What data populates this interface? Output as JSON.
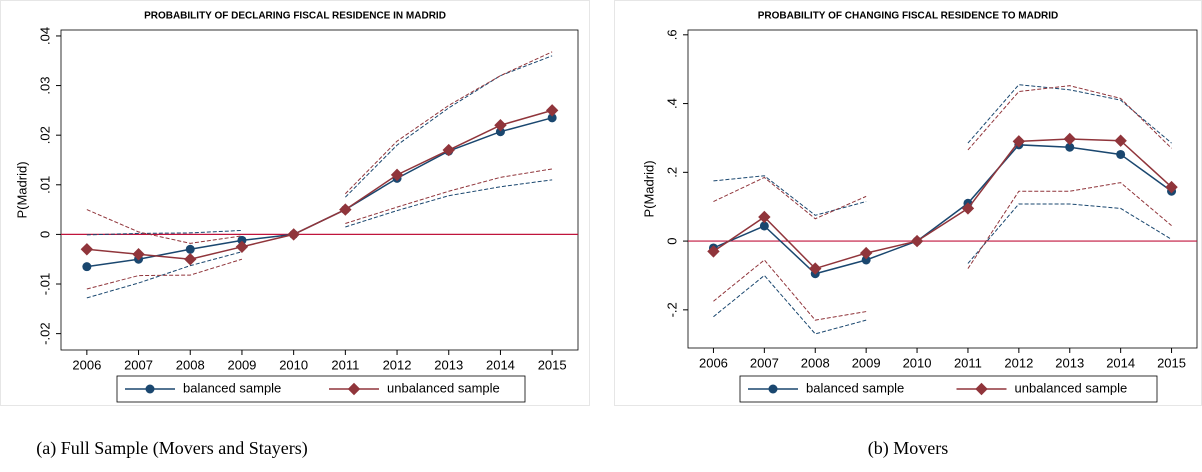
{
  "chart_data": [
    {
      "type": "line",
      "title": "PROBABILITY OF DECLARING FISCAL RESIDENCE IN MADRID",
      "y_label": "P(Madrid)",
      "caption": "(a) Full Sample (Movers and Stayers)",
      "categories": [
        "2006",
        "2007",
        "2008",
        "2009",
        "2010",
        "2011",
        "2012",
        "2013",
        "2014",
        "2015"
      ],
      "ylim": [
        -0.0233,
        0.0412
      ],
      "yticks": [
        {
          "value": -0.02,
          "label": "-.02"
        },
        {
          "value": -0.01,
          "label": "-.01"
        },
        0,
        {
          "value": 0.01,
          "label": ".01"
        },
        {
          "value": 0.02,
          "label": ".02"
        },
        {
          "value": 0.03,
          "label": ".03"
        },
        {
          "value": 0.04,
          "label": ".04"
        }
      ],
      "reference_line": 0,
      "reference_color": "#c0143c",
      "series": [
        {
          "name": "balanced sample",
          "color": "#1a476f",
          "marker": "circle",
          "values": [
            -0.0065,
            -0.005,
            -0.003,
            -0.0012,
            0,
            0.005,
            0.0113,
            0.0168,
            0.0207,
            0.0235
          ],
          "upper": [
            -0.0001,
            0.0002,
            0.0003,
            0.0008,
            null,
            0.0075,
            0.018,
            0.0255,
            0.032,
            0.036
          ],
          "lower": [
            -0.0128,
            -0.0098,
            -0.0063,
            -0.0035,
            null,
            0.0015,
            0.0048,
            0.0078,
            0.0096,
            0.011
          ]
        },
        {
          "name": "unbalanced sample",
          "color": "#90353b",
          "marker": "diamond",
          "values": [
            -0.003,
            -0.004,
            -0.005,
            -0.0025,
            0,
            0.005,
            0.012,
            0.017,
            0.022,
            0.025
          ],
          "upper": [
            0.005,
            0.0005,
            -0.0018,
            -0.0003,
            null,
            0.0082,
            0.0188,
            0.026,
            0.032,
            0.0368
          ],
          "lower": [
            -0.011,
            -0.0083,
            -0.0082,
            -0.005,
            null,
            0.0022,
            0.0055,
            0.0087,
            0.0115,
            0.0132
          ]
        }
      ]
    },
    {
      "type": "line",
      "title": "PROBABILITY OF CHANGING FISCAL RESIDENCE TO MADRID",
      "y_label": "P(Madrid)",
      "caption": "(b) Movers",
      "categories": [
        "2006",
        "2007",
        "2008",
        "2009",
        "2010",
        "2011",
        "2012",
        "2013",
        "2014",
        "2015"
      ],
      "ylim": [
        -0.311,
        0.614
      ],
      "yticks": [
        {
          "value": -0.2,
          "label": "-.2"
        },
        0,
        {
          "value": 0.2,
          "label": ".2"
        },
        {
          "value": 0.4,
          "label": ".4"
        },
        {
          "value": 0.6,
          "label": ".6"
        }
      ],
      "reference_line": 0,
      "reference_color": "#c0143c",
      "series": [
        {
          "name": "balanced sample",
          "color": "#1a476f",
          "marker": "circle",
          "values": [
            -0.02,
            0.044,
            -0.095,
            -0.055,
            0,
            0.11,
            0.28,
            0.273,
            0.252,
            0.145
          ],
          "upper": [
            0.175,
            0.19,
            0.075,
            0.115,
            null,
            0.285,
            0.455,
            0.44,
            0.41,
            0.285
          ],
          "lower": [
            -0.22,
            -0.1,
            -0.27,
            -0.23,
            null,
            -0.065,
            0.108,
            0.108,
            0.095,
            0.005
          ]
        },
        {
          "name": "unbalanced sample",
          "color": "#90353b",
          "marker": "diamond",
          "values": [
            -0.03,
            0.07,
            -0.08,
            -0.035,
            0,
            0.095,
            0.29,
            0.297,
            0.292,
            0.157
          ],
          "upper": [
            0.115,
            0.185,
            0.065,
            0.13,
            null,
            0.265,
            0.435,
            0.452,
            0.415,
            0.27
          ],
          "lower": [
            -0.175,
            -0.055,
            -0.23,
            -0.205,
            null,
            -0.08,
            0.145,
            0.145,
            0.17,
            0.045
          ]
        }
      ]
    }
  ]
}
